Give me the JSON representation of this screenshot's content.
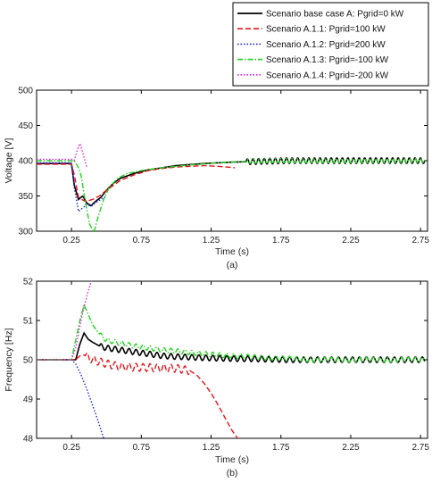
{
  "chart_data": [
    {
      "type": "line",
      "panel_label": "(a)",
      "xlabel": "Time (s)",
      "ylabel": "Voltage [V]",
      "xlim": [
        0,
        2.8
      ],
      "ylim": [
        300,
        500
      ],
      "xticks": [
        0.25,
        0.75,
        1.25,
        1.75,
        2.25,
        2.75
      ],
      "xtick_labels": [
        "0.25",
        "0.75",
        "1.25",
        "1.75",
        "2.25",
        "2.75"
      ],
      "yticks": [
        300,
        350,
        400,
        450,
        500
      ],
      "ytick_labels": [
        "300",
        "350",
        "400",
        "450",
        "500"
      ],
      "legend": "top-right",
      "series": [
        {
          "name": "Scenario base case A: Pgrid=0 kW",
          "color": "#000000",
          "dash": "solid",
          "x": [
            0,
            0.25,
            0.27,
            0.3,
            0.33,
            0.36,
            0.39,
            0.42,
            0.46,
            0.5,
            0.55,
            0.6,
            0.7,
            0.8,
            0.9,
            1.0,
            1.2,
            1.4,
            1.6,
            1.8,
            2.0,
            2.2,
            2.4,
            2.6,
            2.78
          ],
          "y": [
            396,
            396,
            365,
            345,
            350,
            340,
            336,
            342,
            348,
            358,
            368,
            375,
            382,
            387,
            390,
            393,
            396,
            398,
            399,
            400,
            400,
            400,
            400,
            400,
            400
          ],
          "osc_amp": 4,
          "osc_period": 0.04,
          "osc_from": 1.5
        },
        {
          "name": "Scenario A.1.1: Pgrid=100 kW",
          "color": "#e8141b",
          "dash": "dashed",
          "x": [
            0,
            0.25,
            0.27,
            0.3,
            0.35,
            0.4,
            0.45,
            0.5,
            0.6,
            0.7,
            0.8,
            0.9,
            1.0,
            1.1,
            1.2,
            1.3,
            1.42
          ],
          "y": [
            395,
            395,
            380,
            348,
            342,
            345,
            350,
            358,
            372,
            380,
            386,
            389,
            391,
            392,
            393,
            392,
            390
          ]
        },
        {
          "name": "Scenario A.1.2: Pgrid=200 kW",
          "color": "#1f26e6",
          "dash": "dotted",
          "x": [
            0,
            0.25,
            0.27,
            0.3,
            0.33,
            0.36,
            0.39,
            0.42,
            0.46,
            0.5
          ],
          "y": [
            397,
            397,
            362,
            328,
            333,
            338,
            335,
            340,
            345,
            350
          ]
        },
        {
          "name": "Scenario A.1.3: Pgrid=-100 kW",
          "color": "#22d41e",
          "dash": "dashdot",
          "x": [
            0,
            0.25,
            0.27,
            0.3,
            0.32,
            0.35,
            0.38,
            0.41,
            0.44,
            0.48,
            0.52,
            0.58,
            0.65,
            0.75,
            0.9,
            1.1,
            1.3,
            1.5,
            1.7,
            2.0,
            2.3,
            2.6,
            2.78
          ],
          "y": [
            400,
            400,
            400,
            390,
            378,
            340,
            310,
            298,
            320,
            345,
            362,
            375,
            382,
            386,
            390,
            394,
            397,
            399,
            400,
            400,
            400,
            400,
            400
          ],
          "osc_amp": 3,
          "osc_period": 0.04,
          "osc_from": 1.5
        },
        {
          "name": "Scenario A.1.4: Pgrid=-200 kW",
          "color": "#e61ee6",
          "dash": "dotted",
          "x": [
            0,
            0.25,
            0.27,
            0.29,
            0.31,
            0.33,
            0.36
          ],
          "y": [
            402,
            402,
            400,
            414,
            425,
            412,
            390
          ]
        }
      ]
    },
    {
      "type": "line",
      "panel_label": "(b)",
      "xlabel": "Time (s)",
      "ylabel": "Frequency [Hz]",
      "xlim": [
        0,
        2.8
      ],
      "ylim": [
        48,
        52
      ],
      "xticks": [
        0.25,
        0.75,
        1.25,
        1.75,
        2.25,
        2.75
      ],
      "xtick_labels": [
        "0.25",
        "0.75",
        "1.25",
        "1.75",
        "2.25",
        "2.75"
      ],
      "yticks": [
        48,
        49,
        50,
        51,
        52
      ],
      "ytick_labels": [
        "48",
        "49",
        "50",
        "51",
        "52"
      ],
      "series": [
        {
          "name": "Scenario base case A: Pgrid=0 kW",
          "color": "#000000",
          "dash": "solid",
          "x": [
            0,
            0.25,
            0.28,
            0.31,
            0.34,
            0.37,
            0.4,
            0.45,
            0.5,
            0.6,
            0.7,
            0.8,
            0.9,
            1.0,
            1.2,
            1.4,
            1.6,
            1.8,
            2.0,
            2.2,
            2.4,
            2.6,
            2.78
          ],
          "y": [
            50.0,
            50.0,
            50.0,
            50.4,
            50.68,
            50.52,
            50.45,
            50.35,
            50.3,
            50.25,
            50.2,
            50.15,
            50.1,
            50.08,
            50.05,
            50.03,
            50.02,
            50.0,
            50.0,
            50.0,
            50.0,
            50.0,
            50.0
          ],
          "osc_amp": 0.07,
          "osc_period": 0.05,
          "osc_from": 0.45
        },
        {
          "name": "Scenario A.1.1: Pgrid=100 kW",
          "color": "#e8141b",
          "dash": "dashed",
          "x": [
            0,
            0.25,
            0.28,
            0.31,
            0.34,
            0.4,
            0.5,
            0.6,
            0.8,
            1.0,
            1.1,
            1.15,
            1.2,
            1.25,
            1.3,
            1.35,
            1.4,
            1.45
          ],
          "y": [
            50.0,
            50.0,
            50.0,
            50.1,
            50.12,
            50.0,
            49.9,
            49.82,
            49.8,
            49.78,
            49.72,
            49.6,
            49.4,
            49.15,
            48.85,
            48.52,
            48.2,
            47.95
          ],
          "osc_amp": 0.1,
          "osc_period": 0.05,
          "osc_from": 0.35,
          "osc_to": 1.1
        },
        {
          "name": "Scenario A.1.2: Pgrid=200 kW",
          "color": "#1f26e6",
          "dash": "dotted",
          "x": [
            0,
            0.25,
            0.28,
            0.32,
            0.36,
            0.4,
            0.44,
            0.48
          ],
          "y": [
            50.0,
            50.0,
            49.9,
            49.6,
            49.25,
            48.85,
            48.45,
            48.0
          ]
        },
        {
          "name": "Scenario A.1.3: Pgrid=-100 kW",
          "color": "#22d41e",
          "dash": "dashdot",
          "x": [
            0,
            0.25,
            0.28,
            0.31,
            0.34,
            0.37,
            0.4,
            0.45,
            0.5,
            0.6,
            0.7,
            0.8,
            0.9,
            1.0,
            1.2,
            1.4,
            1.6,
            1.8,
            2.0,
            2.2,
            2.4,
            2.6,
            2.78
          ],
          "y": [
            50.0,
            50.0,
            50.5,
            51.0,
            51.4,
            51.15,
            50.9,
            50.65,
            50.5,
            50.42,
            50.35,
            50.3,
            50.25,
            50.22,
            50.15,
            50.1,
            50.06,
            50.03,
            50.0,
            50.0,
            50.0,
            50.0,
            50.0
          ],
          "osc_amp": 0.06,
          "osc_period": 0.05,
          "osc_from": 0.45
        },
        {
          "name": "Scenario A.1.4: Pgrid=-200 kW",
          "color": "#e61ee6",
          "dash": "dotted",
          "x": [
            0,
            0.25,
            0.28,
            0.31,
            0.34,
            0.37,
            0.4
          ],
          "y": [
            50.0,
            50.0,
            50.3,
            50.85,
            51.35,
            51.75,
            52.1
          ]
        }
      ]
    }
  ]
}
